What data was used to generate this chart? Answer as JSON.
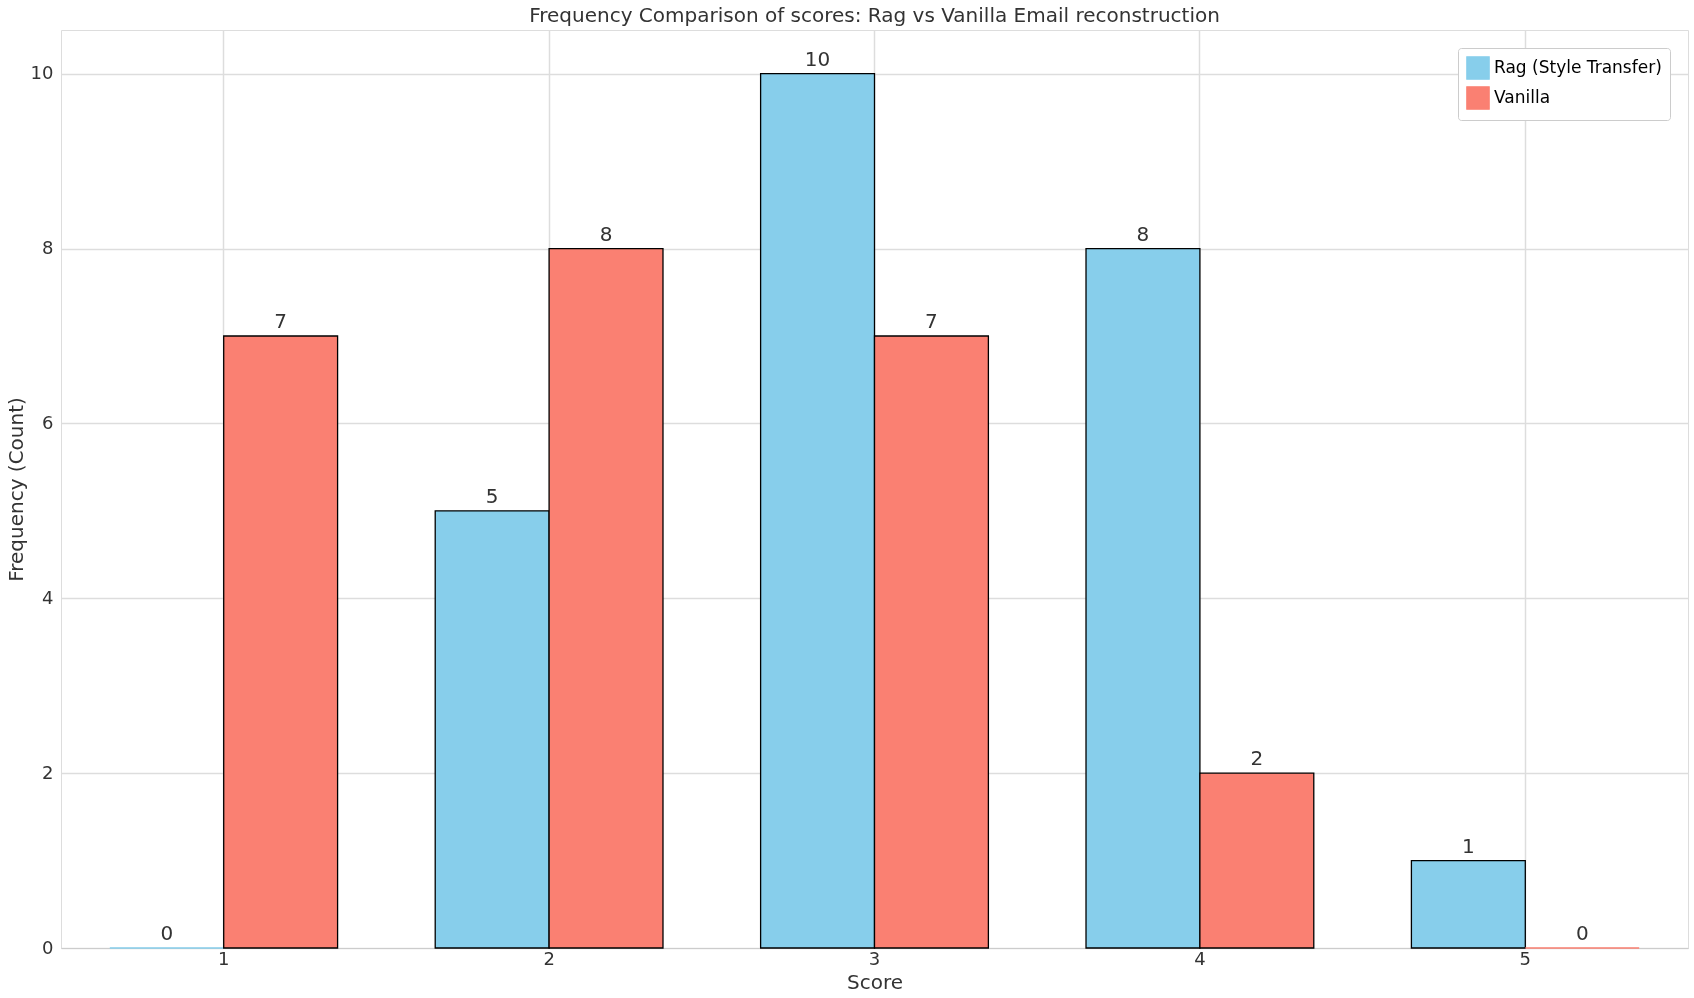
{
  "chart_data": {
    "type": "bar",
    "title": "Frequency Comparison of scores: Rag vs Vanilla Email reconstruction",
    "xlabel": "Score",
    "ylabel": "Frequency (Count)",
    "categories": [
      "1",
      "2",
      "3",
      "4",
      "5"
    ],
    "series": [
      {
        "name": "Rag (Style Transfer)",
        "color": "#87ceeb",
        "values": [
          0,
          5,
          10,
          8,
          1
        ]
      },
      {
        "name": "Vanilla",
        "color": "#fa8072",
        "values": [
          7,
          8,
          7,
          2,
          0
        ]
      }
    ],
    "ylim": [
      0,
      10.5
    ],
    "yticks": [
      0,
      2,
      4,
      6,
      8,
      10
    ],
    "grid": true,
    "legend": "top right",
    "data_labels": true
  }
}
